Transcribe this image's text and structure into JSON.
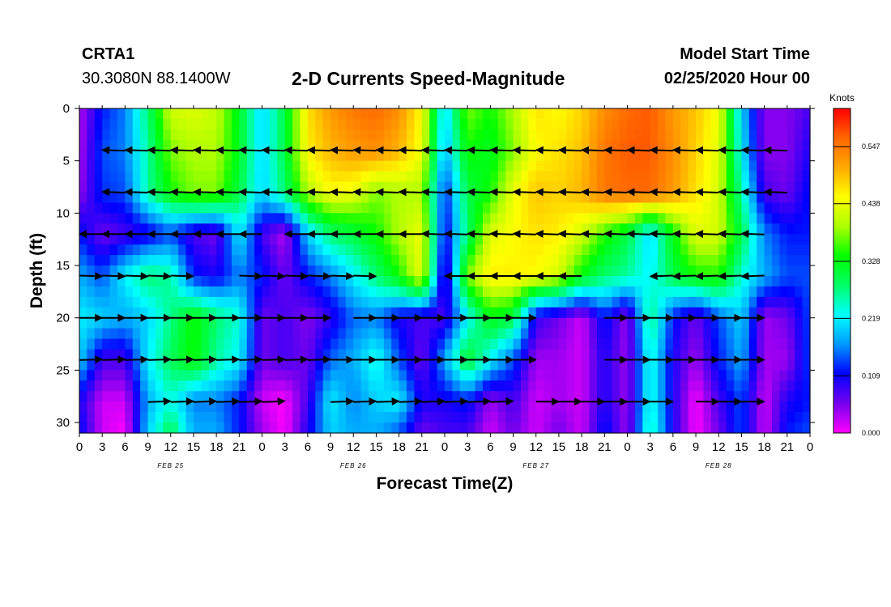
{
  "header": {
    "station_id": "CRTA1",
    "station_coords": "30.3080N 88.1400W",
    "title": "2-D Currents Speed-Magnitude",
    "model_start_label": "Model Start Time",
    "model_start_value": "02/25/2020 Hour 00"
  },
  "chart_data": {
    "type": "heatmap",
    "title": "2-D Currents Speed-Magnitude",
    "xlabel": "Forecast Time(Z)",
    "ylabel": "Depth (ft)",
    "x_range_hours": [
      0,
      96
    ],
    "y_range_ft": [
      0,
      31
    ],
    "y_inverted": true,
    "x_tick_labels": [
      "0",
      "3",
      "6",
      "9",
      "12",
      "15",
      "18",
      "21",
      "0",
      "3",
      "6",
      "9",
      "12",
      "15",
      "18",
      "21",
      "0",
      "3",
      "6",
      "9",
      "12",
      "15",
      "18",
      "21",
      "0",
      "3",
      "6",
      "9",
      "12",
      "15",
      "18",
      "21",
      "0"
    ],
    "x_tick_hours": [
      0,
      3,
      6,
      9,
      12,
      15,
      18,
      21,
      24,
      27,
      30,
      33,
      36,
      39,
      42,
      45,
      48,
      51,
      54,
      57,
      60,
      63,
      66,
      69,
      72,
      75,
      78,
      81,
      84,
      87,
      90,
      93,
      96
    ],
    "date_labels": [
      {
        "text": "FEB 25",
        "hour": 12
      },
      {
        "text": "FEB 26",
        "hour": 36
      },
      {
        "text": "FEB 27",
        "hour": 60
      },
      {
        "text": "FEB 28",
        "hour": 84
      }
    ],
    "y_ticks": [
      0,
      5,
      10,
      15,
      20,
      25,
      30
    ],
    "colorbar": {
      "unit": "Knots",
      "range": [
        0.0,
        0.62
      ],
      "tick_values": [
        0.0,
        0.109,
        0.219,
        0.328,
        0.438,
        0.547
      ],
      "tick_labels": [
        "0.000",
        "0.109",
        "0.219",
        "0.328",
        "0.438",
        "0.547"
      ],
      "colors": [
        "#ff00ff",
        "#7700ee",
        "#0000ff",
        "#0099ff",
        "#00ffff",
        "#00ff66",
        "#00ff00",
        "#aaff00",
        "#ffff00",
        "#ffaa00",
        "#ff6600",
        "#ff0000"
      ]
    },
    "speed_grid_knots": {
      "depth_ft": [
        0,
        4,
        8,
        12,
        16,
        20,
        24,
        28,
        31
      ],
      "hours": [
        0,
        3,
        6,
        9,
        12,
        15,
        18,
        21,
        24,
        27,
        30,
        33,
        36,
        39,
        42,
        45,
        48,
        51,
        54,
        57,
        60,
        63,
        66,
        69,
        72,
        75,
        78,
        81,
        84,
        87,
        90,
        93,
        96
      ],
      "values": [
        [
          0.03,
          0.12,
          0.16,
          0.28,
          0.42,
          0.43,
          0.41,
          0.32,
          0.2,
          0.3,
          0.47,
          0.52,
          0.55,
          0.56,
          0.53,
          0.45,
          0.2,
          0.38,
          0.34,
          0.4,
          0.47,
          0.45,
          0.48,
          0.53,
          0.56,
          0.57,
          0.52,
          0.49,
          0.44,
          0.2,
          0.05,
          0.05,
          0.08
        ],
        [
          0.03,
          0.14,
          0.16,
          0.26,
          0.38,
          0.4,
          0.4,
          0.32,
          0.2,
          0.3,
          0.46,
          0.5,
          0.52,
          0.53,
          0.5,
          0.44,
          0.18,
          0.34,
          0.32,
          0.38,
          0.45,
          0.47,
          0.49,
          0.55,
          0.57,
          0.57,
          0.53,
          0.48,
          0.43,
          0.22,
          0.05,
          0.05,
          0.1
        ],
        [
          0.04,
          0.13,
          0.14,
          0.26,
          0.34,
          0.38,
          0.38,
          0.3,
          0.2,
          0.28,
          0.4,
          0.45,
          0.44,
          0.38,
          0.4,
          0.4,
          0.12,
          0.3,
          0.34,
          0.44,
          0.49,
          0.48,
          0.5,
          0.55,
          0.56,
          0.56,
          0.52,
          0.47,
          0.42,
          0.26,
          0.08,
          0.06,
          0.12
        ],
        [
          0.12,
          0.06,
          0.08,
          0.1,
          0.14,
          0.08,
          0.06,
          0.22,
          0.08,
          0.03,
          0.2,
          0.28,
          0.3,
          0.34,
          0.4,
          0.44,
          0.1,
          0.28,
          0.43,
          0.45,
          0.47,
          0.46,
          0.42,
          0.35,
          0.3,
          0.2,
          0.33,
          0.43,
          0.42,
          0.3,
          0.16,
          0.12,
          0.12
        ],
        [
          0.18,
          0.14,
          0.22,
          0.28,
          0.26,
          0.12,
          0.1,
          0.16,
          0.12,
          0.06,
          0.12,
          0.16,
          0.22,
          0.28,
          0.34,
          0.44,
          0.06,
          0.38,
          0.46,
          0.46,
          0.45,
          0.42,
          0.33,
          0.28,
          0.26,
          0.22,
          0.3,
          0.34,
          0.35,
          0.24,
          0.18,
          0.14,
          0.14
        ],
        [
          0.22,
          0.2,
          0.18,
          0.2,
          0.27,
          0.34,
          0.28,
          0.24,
          0.06,
          0.08,
          0.05,
          0.09,
          0.15,
          0.16,
          0.1,
          0.08,
          0.08,
          0.22,
          0.33,
          0.3,
          0.09,
          0.06,
          0.02,
          0.12,
          0.04,
          0.28,
          0.12,
          0.06,
          0.14,
          0.2,
          0.04,
          0.06,
          0.14
        ],
        [
          0.2,
          0.08,
          0.08,
          0.22,
          0.29,
          0.34,
          0.26,
          0.22,
          0.06,
          0.08,
          0.06,
          0.15,
          0.18,
          0.24,
          0.14,
          0.06,
          0.18,
          0.32,
          0.22,
          0.14,
          0.04,
          0.04,
          0.02,
          0.1,
          0.04,
          0.24,
          0.1,
          0.04,
          0.12,
          0.18,
          0.04,
          0.04,
          0.14
        ],
        [
          0.1,
          0.02,
          0.02,
          0.18,
          0.24,
          0.16,
          0.16,
          0.12,
          0.02,
          0.0,
          0.08,
          0.22,
          0.16,
          0.2,
          0.22,
          0.1,
          0.1,
          0.12,
          0.04,
          0.08,
          0.02,
          0.04,
          0.02,
          0.1,
          0.04,
          0.24,
          0.1,
          0.0,
          0.08,
          0.14,
          0.02,
          0.1,
          0.12
        ],
        [
          0.12,
          0.02,
          0.0,
          0.2,
          0.3,
          0.18,
          0.18,
          0.12,
          0.04,
          0.0,
          0.1,
          0.2,
          0.18,
          0.18,
          0.14,
          0.06,
          0.08,
          0.08,
          0.02,
          0.06,
          0.02,
          0.06,
          0.02,
          0.12,
          0.04,
          0.26,
          0.1,
          0.0,
          0.06,
          0.14,
          0.02,
          0.12,
          0.14
        ]
      ]
    },
    "vector_arrows": {
      "direction_convention": "degrees clockwise from north (direction of flow)",
      "rows": [
        {
          "depth_ft": 4,
          "start_hour": 3,
          "end_hour": 93,
          "dir_deg": 272
        },
        {
          "depth_ft": 8,
          "start_hour": 3,
          "end_hour": 93,
          "dir_deg": 272
        },
        {
          "depth_ft": 12,
          "start_hour": 0,
          "end_hour": 24,
          "dir_deg": 270
        },
        {
          "depth_ft": 12,
          "start_hour": 27,
          "end_hour": 45,
          "dir_deg": 270
        },
        {
          "depth_ft": 12,
          "start_hour": 45,
          "end_hour": 90,
          "dir_deg": 272
        },
        {
          "depth_ft": 16,
          "start_hour": 0,
          "end_hour": 15,
          "dir_deg": 92
        },
        {
          "depth_ft": 16,
          "start_hour": 21,
          "end_hour": 39,
          "dir_deg": 92
        },
        {
          "depth_ft": 16,
          "start_hour": 48,
          "end_hour": 66,
          "dir_deg": 270
        },
        {
          "depth_ft": 16,
          "start_hour": 75,
          "end_hour": 90,
          "dir_deg": 268
        },
        {
          "depth_ft": 20,
          "start_hour": 0,
          "end_hour": 33,
          "dir_deg": 90
        },
        {
          "depth_ft": 20,
          "start_hour": 36,
          "end_hour": 60,
          "dir_deg": 90
        },
        {
          "depth_ft": 20,
          "start_hour": 69,
          "end_hour": 90,
          "dir_deg": 90
        },
        {
          "depth_ft": 24,
          "start_hour": 0,
          "end_hour": 33,
          "dir_deg": 88
        },
        {
          "depth_ft": 24,
          "start_hour": 33,
          "end_hour": 60,
          "dir_deg": 90
        },
        {
          "depth_ft": 24,
          "start_hour": 69,
          "end_hour": 90,
          "dir_deg": 90
        },
        {
          "depth_ft": 28,
          "start_hour": 9,
          "end_hour": 27,
          "dir_deg": 88
        },
        {
          "depth_ft": 28,
          "start_hour": 33,
          "end_hour": 57,
          "dir_deg": 88
        },
        {
          "depth_ft": 28,
          "start_hour": 60,
          "end_hour": 78,
          "dir_deg": 90
        },
        {
          "depth_ft": 28,
          "start_hour": 81,
          "end_hour": 90,
          "dir_deg": 90
        }
      ]
    }
  }
}
